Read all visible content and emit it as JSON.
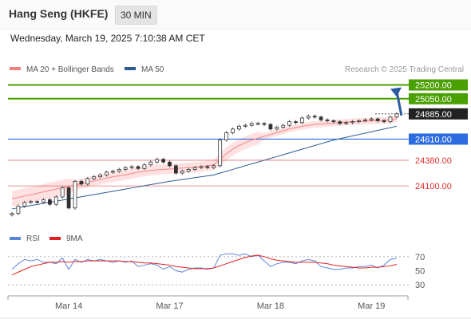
{
  "header": {
    "title": "Hang Seng (HKFE)",
    "timeframe": "30 MIN",
    "datetime": "Wednesday, March 19, 2025 7:10:38 AM CET"
  },
  "legend": {
    "items": [
      {
        "label": "MA 20 + Bollinger Bands",
        "color": "#f08080"
      },
      {
        "label": "MA 50",
        "color": "#2d5a8e"
      }
    ],
    "credit": "Research © 2025 Trading Central"
  },
  "rsi_legend": {
    "items": [
      {
        "label": "RSI",
        "color": "#5b86d6"
      },
      {
        "label": "9MA",
        "color": "#e02020"
      }
    ]
  },
  "colors": {
    "resistance": "#4aa000",
    "pivot": "#2d6be0",
    "support": "#e03030",
    "bollinger_fill": "#ffd9d9",
    "ma50": "#2d5a8e",
    "ma20": "#f08080",
    "candle": "#333333",
    "arrow": "#2d5a9e"
  },
  "chart_data": [
    {
      "type": "candlestick",
      "xlabel": "",
      "ylabel": "",
      "x_tick_labels": [
        "Mar 14",
        "Mar 17",
        "Mar 18",
        "Mar 19"
      ],
      "x_tick_index": [
        9,
        25,
        41,
        57
      ],
      "ylim": [
        23780,
        25300
      ],
      "current_price": 24885,
      "levels": [
        {
          "label": "25200.00",
          "value": 25200,
          "role": "resistance"
        },
        {
          "label": "25050.00",
          "value": 25050,
          "role": "resistance"
        },
        {
          "label": "24885.00",
          "value": 24885,
          "role": "last"
        },
        {
          "label": "24610.00",
          "value": 24610,
          "role": "pivot"
        },
        {
          "label": "24380.00",
          "value": 24380,
          "role": "support"
        },
        {
          "label": "24100.00",
          "value": 24100,
          "role": "support"
        }
      ],
      "close": [
        23800,
        23880,
        23920,
        23930,
        23925,
        23950,
        23900,
        23980,
        24080,
        23860,
        24150,
        24120,
        24180,
        24200,
        24220,
        24250,
        24260,
        24280,
        24300,
        24310,
        24290,
        24330,
        24360,
        24390,
        24360,
        24320,
        24240,
        24260,
        24280,
        24300,
        24310,
        24300,
        24320,
        24600,
        24680,
        24720,
        24750,
        24760,
        24780,
        24780,
        24770,
        24720,
        24740,
        24760,
        24800,
        24790,
        24840,
        24860,
        24850,
        24820,
        24810,
        24800,
        24780,
        24790,
        24800,
        24810,
        24820,
        24830,
        24810,
        24800,
        24850,
        24885
      ],
      "ma20": [
        23960,
        23975,
        23990,
        24005,
        24020,
        24035,
        24050,
        24065,
        24080,
        24095,
        24110,
        24125,
        24140,
        24155,
        24170,
        24185,
        24200,
        24210,
        24220,
        24235,
        24250,
        24260,
        24270,
        24275,
        24280,
        24285,
        24290,
        24295,
        24300,
        24305,
        24310,
        24320,
        24330,
        24390,
        24450,
        24500,
        24540,
        24570,
        24600,
        24620,
        24640,
        24660,
        24680,
        24700,
        24720,
        24735,
        24750,
        24760,
        24770,
        24775,
        24780,
        24785,
        24790,
        24795,
        24800,
        24800,
        24805,
        24810,
        24810,
        24815,
        24820,
        24830
      ],
      "ma50": [
        23850,
        23862,
        23874,
        23886,
        23898,
        23910,
        23922,
        23934,
        23946,
        23958,
        23970,
        23982,
        23994,
        24006,
        24018,
        24030,
        24042,
        24054,
        24066,
        24078,
        24090,
        24102,
        24114,
        24126,
        24138,
        24150,
        24160,
        24170,
        24180,
        24190,
        24200,
        24210,
        24220,
        24240,
        24260,
        24280,
        24300,
        24320,
        24340,
        24360,
        24380,
        24400,
        24420,
        24440,
        24460,
        24480,
        24500,
        24520,
        24540,
        24560,
        24580,
        24600,
        24615,
        24630,
        24645,
        24660,
        24675,
        24690,
        24705,
        24720,
        24735,
        24750
      ]
    },
    {
      "type": "line",
      "xlabel": "",
      "ylabel": "",
      "ylim": [
        20,
        80
      ],
      "y_ticks": [
        30,
        50,
        70
      ],
      "series": [
        {
          "name": "RSI",
          "values": [
            52,
            60,
            66,
            64,
            66,
            62,
            62,
            60,
            68,
            52,
            66,
            62,
            66,
            64,
            66,
            64,
            62,
            64,
            62,
            64,
            56,
            58,
            60,
            58,
            52,
            56,
            50,
            48,
            52,
            54,
            54,
            52,
            54,
            72,
            74,
            74,
            72,
            74,
            70,
            72,
            64,
            56,
            60,
            62,
            62,
            60,
            64,
            66,
            64,
            56,
            54,
            52,
            52,
            54,
            54,
            56,
            56,
            58,
            54,
            58,
            66,
            68
          ]
        },
        {
          "name": "9MA",
          "values": [
            44,
            48,
            52,
            56,
            58,
            60,
            62,
            62,
            63,
            62,
            63,
            63,
            64,
            64,
            64,
            64,
            64,
            64,
            63,
            63,
            62,
            61,
            61,
            60,
            59,
            58,
            56,
            55,
            54,
            53,
            53,
            53,
            54,
            57,
            60,
            63,
            66,
            69,
            71,
            72,
            70,
            67,
            65,
            64,
            63,
            62,
            62,
            62,
            62,
            61,
            60,
            58,
            57,
            56,
            55,
            54,
            54,
            55,
            55,
            56,
            57,
            59
          ]
        }
      ]
    }
  ]
}
